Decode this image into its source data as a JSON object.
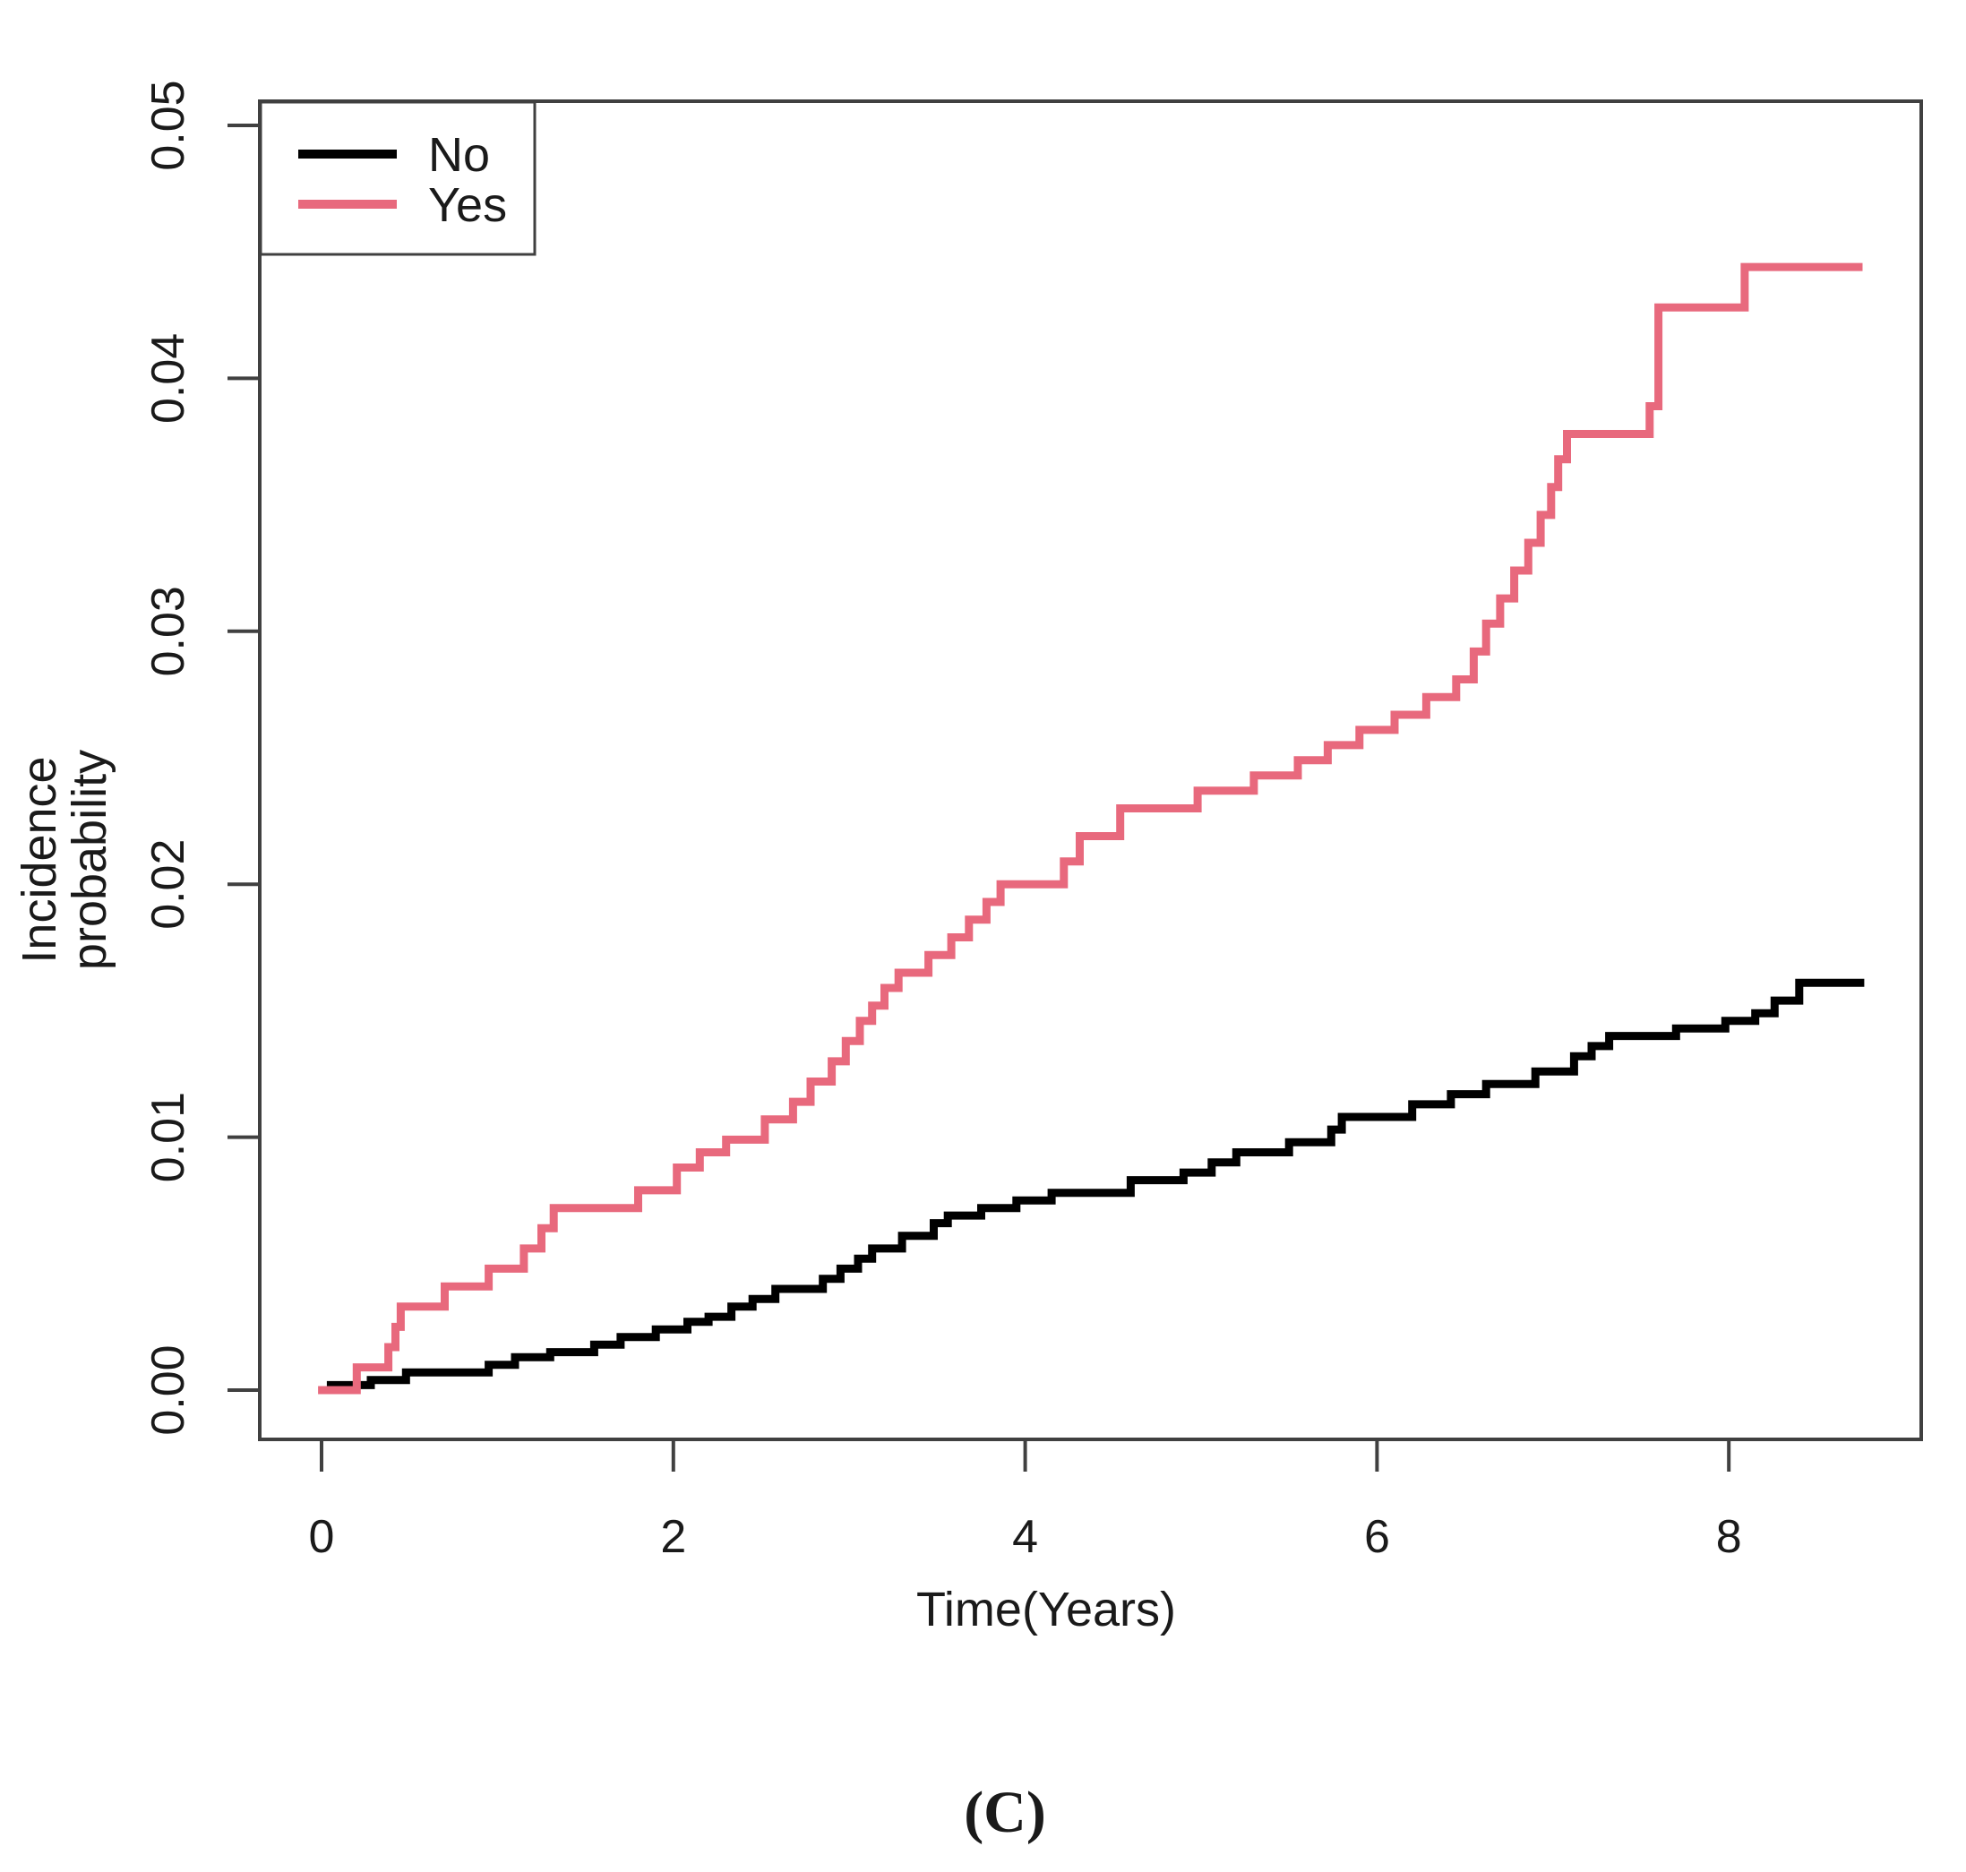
{
  "figure_label": "(C)",
  "colors": {
    "background": "#ffffff",
    "axis": "#404040",
    "text": "#1a1a1a",
    "series_no": "#000000",
    "series_yes": "#e8697d"
  },
  "legend": {
    "position": "top-left",
    "items": [
      {
        "label": "No",
        "color": "#000000"
      },
      {
        "label": "Yes",
        "color": "#e8697d"
      }
    ]
  },
  "chart_data": {
    "type": "line",
    "subtype": "step-cumulative-incidence",
    "title": "",
    "xlabel": "Time(Years)",
    "ylabel": "Incidence probability",
    "ylabel_lines": [
      "Incidence",
      "probability"
    ],
    "xlim": [
      -0.35,
      9.09
    ],
    "ylim": [
      -0.002,
      0.051
    ],
    "xticks": [
      0,
      2,
      4,
      6,
      8
    ],
    "xtick_labels": [
      "0",
      "2",
      "4",
      "6",
      "8"
    ],
    "ytick_values": [
      0.0,
      0.01,
      0.02,
      0.03,
      0.04,
      0.05
    ],
    "ytick_labels": [
      "0.00",
      "0.01",
      "0.02",
      "0.03",
      "0.04",
      "0.05"
    ],
    "grid": false,
    "legend_position": "top-left",
    "series": [
      {
        "name": "No",
        "color": "#000000",
        "step": true,
        "end_time": 8.77,
        "points": [
          [
            0.03,
            0.0002
          ],
          [
            0.28,
            0.0004
          ],
          [
            0.48,
            0.0007
          ],
          [
            0.95,
            0.001
          ],
          [
            1.1,
            0.0013
          ],
          [
            1.3,
            0.0015
          ],
          [
            1.55,
            0.0018
          ],
          [
            1.7,
            0.0021
          ],
          [
            1.9,
            0.0024
          ],
          [
            2.08,
            0.0027
          ],
          [
            2.2,
            0.0029
          ],
          [
            2.33,
            0.0033
          ],
          [
            2.45,
            0.0036
          ],
          [
            2.58,
            0.004
          ],
          [
            2.85,
            0.0044
          ],
          [
            2.95,
            0.0048
          ],
          [
            3.05,
            0.0052
          ],
          [
            3.13,
            0.0056
          ],
          [
            3.3,
            0.0061
          ],
          [
            3.48,
            0.0066
          ],
          [
            3.56,
            0.0069
          ],
          [
            3.75,
            0.0072
          ],
          [
            3.95,
            0.0075
          ],
          [
            4.15,
            0.0078
          ],
          [
            4.6,
            0.0083
          ],
          [
            4.9,
            0.0086
          ],
          [
            5.06,
            0.009
          ],
          [
            5.2,
            0.0094
          ],
          [
            5.5,
            0.0098
          ],
          [
            5.74,
            0.0103
          ],
          [
            5.8,
            0.0108
          ],
          [
            6.2,
            0.0113
          ],
          [
            6.42,
            0.0117
          ],
          [
            6.62,
            0.0121
          ],
          [
            6.9,
            0.0126
          ],
          [
            7.12,
            0.0132
          ],
          [
            7.22,
            0.0136
          ],
          [
            7.32,
            0.014
          ],
          [
            7.7,
            0.0143
          ],
          [
            7.98,
            0.0146
          ],
          [
            8.15,
            0.0149
          ],
          [
            8.26,
            0.0154
          ],
          [
            8.4,
            0.0161
          ]
        ]
      },
      {
        "name": "Yes",
        "color": "#e8697d",
        "step": true,
        "end_time": 8.76,
        "points": [
          [
            -0.02,
            0.0
          ],
          [
            0.2,
            0.0009
          ],
          [
            0.38,
            0.0017
          ],
          [
            0.42,
            0.0025
          ],
          [
            0.45,
            0.0033
          ],
          [
            0.7,
            0.0041
          ],
          [
            0.95,
            0.0048
          ],
          [
            1.15,
            0.0056
          ],
          [
            1.25,
            0.0064
          ],
          [
            1.32,
            0.0072
          ],
          [
            1.8,
            0.0079
          ],
          [
            2.02,
            0.0088
          ],
          [
            2.15,
            0.0094
          ],
          [
            2.3,
            0.0099
          ],
          [
            2.52,
            0.0107
          ],
          [
            2.68,
            0.0114
          ],
          [
            2.78,
            0.0122
          ],
          [
            2.9,
            0.013
          ],
          [
            2.98,
            0.0138
          ],
          [
            3.06,
            0.0146
          ],
          [
            3.13,
            0.0152
          ],
          [
            3.2,
            0.0159
          ],
          [
            3.28,
            0.0165
          ],
          [
            3.45,
            0.0172
          ],
          [
            3.58,
            0.0179
          ],
          [
            3.68,
            0.0186
          ],
          [
            3.78,
            0.0193
          ],
          [
            3.86,
            0.02
          ],
          [
            4.22,
            0.0209
          ],
          [
            4.31,
            0.0219
          ],
          [
            4.54,
            0.023
          ],
          [
            4.98,
            0.0237
          ],
          [
            5.3,
            0.0243
          ],
          [
            5.55,
            0.0249
          ],
          [
            5.72,
            0.0255
          ],
          [
            5.9,
            0.0261
          ],
          [
            6.1,
            0.0267
          ],
          [
            6.28,
            0.0274
          ],
          [
            6.45,
            0.0281
          ],
          [
            6.55,
            0.0292
          ],
          [
            6.62,
            0.0303
          ],
          [
            6.7,
            0.0313
          ],
          [
            6.78,
            0.0324
          ],
          [
            6.86,
            0.0335
          ],
          [
            6.93,
            0.0346
          ],
          [
            6.99,
            0.0357
          ],
          [
            7.03,
            0.0368
          ],
          [
            7.08,
            0.0378
          ],
          [
            7.55,
            0.0389
          ],
          [
            7.6,
            0.0428
          ],
          [
            8.09,
            0.0444
          ]
        ]
      }
    ]
  }
}
